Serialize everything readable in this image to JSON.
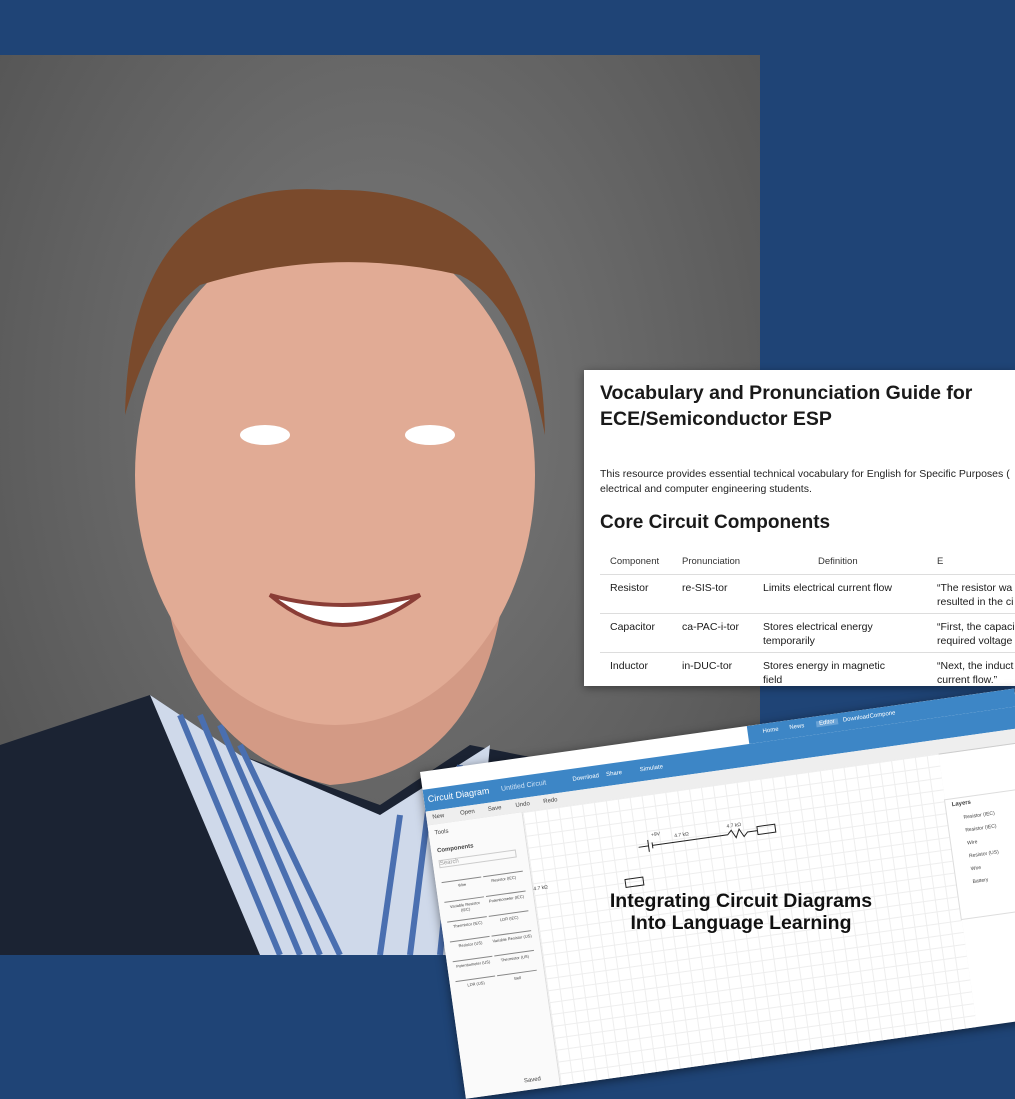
{
  "document": {
    "title": "Vocabulary and Pronunciation Guide for ECE/Semiconductor ESP",
    "intro": [
      "This resource provides essential technical vocabulary for English for Specific Purposes (",
      "electrical and computer engineering students."
    ],
    "section": "Core Circuit Components",
    "table": {
      "headers": [
        "Component",
        "Pronunciation",
        "Definition",
        "E"
      ],
      "rows": [
        [
          "Resistor",
          "re-SIS-tor",
          "Limits electrical current flow",
          [
            "“The resistor wa",
            "resulted in the ci"
          ]
        ],
        [
          "Capacitor",
          "ca-PAC-i-tor",
          "Stores electrical energy temporarily",
          [
            "“First, the capaci",
            "required voltage"
          ]
        ],
        [
          "Inductor",
          "in-DUC-tor",
          "Stores energy in magnetic field",
          [
            "“Next, the induct",
            "current flow.”"
          ]
        ]
      ]
    }
  },
  "app": {
    "nav": [
      "Home",
      "News",
      "Editor",
      "Download",
      "Compone"
    ],
    "name": "Circuit Diagram",
    "file": "Untitled Circuit",
    "menu": [
      "Download",
      "Share",
      "Simulate"
    ],
    "toolbar": [
      "New",
      "Open",
      "Save",
      "Undo",
      "Redo"
    ],
    "tools": "Tools",
    "components": "Components",
    "search": "Search",
    "parts": [
      "Wire",
      "Resistor (IEC)",
      "Variable Resistor (IEC)",
      "Potentiometer (IEC)",
      "Thermistor (IEC)",
      "LDR (IEC)",
      "Resistor (US)",
      "Variable Resistor (US)",
      "Potentiometer (US)",
      "Thermistor (US)",
      "LDR (US)",
      "Bell"
    ],
    "labels": [
      "+9V",
      "4.7 kΩ",
      "4.7 kΩ",
      "4.7 kΩ"
    ],
    "layers_title": "Layers",
    "layers": [
      "Resistor (IEC)",
      "Resistor (IEC)",
      "Wire",
      "Resistor (US)",
      "Wire",
      "Battery"
    ],
    "status": "Saved"
  },
  "caption": [
    "Integrating Circuit Diagrams",
    "Into Language Learning"
  ]
}
